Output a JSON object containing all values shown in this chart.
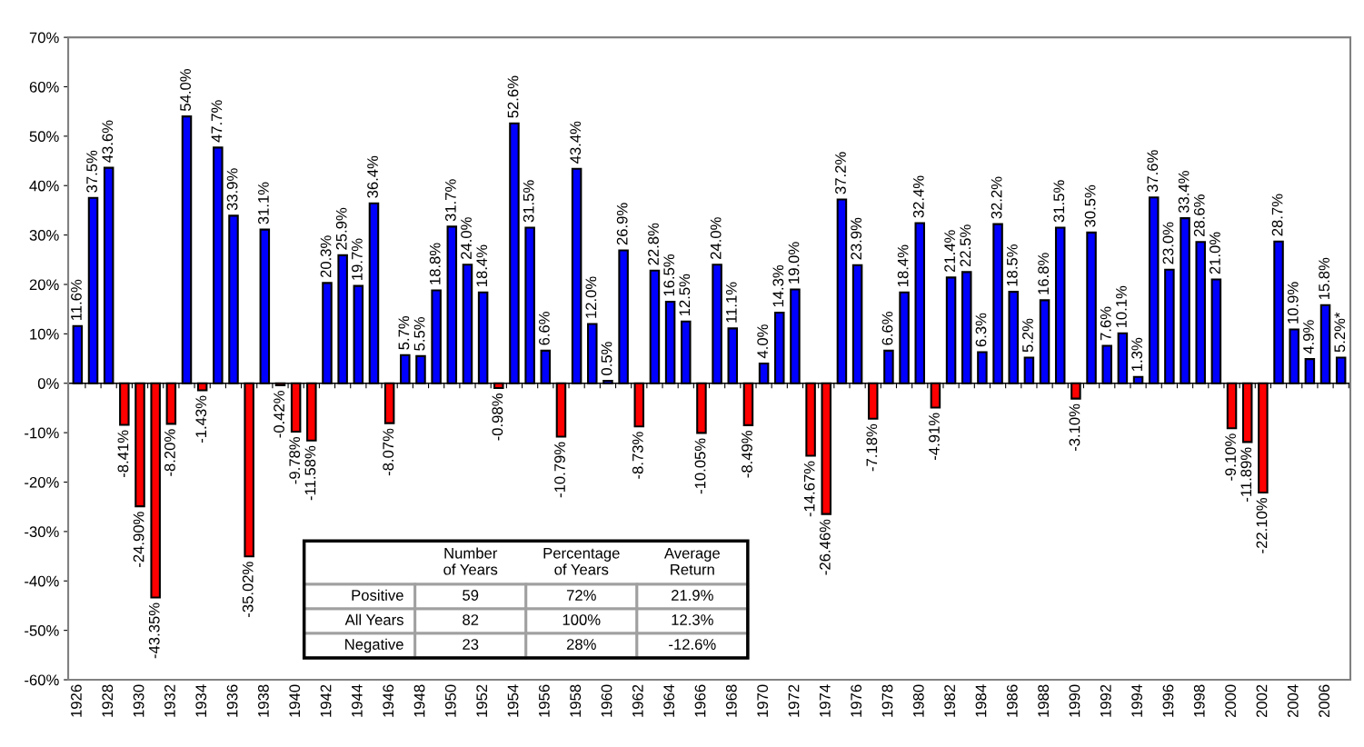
{
  "chart_data": {
    "type": "bar",
    "categories": [
      "1926",
      null,
      "1928",
      null,
      "1930",
      null,
      "1932",
      null,
      "1934",
      null,
      "1936",
      null,
      "1938",
      null,
      "1940",
      null,
      "1942",
      null,
      "1944",
      null,
      "1946",
      null,
      "1948",
      null,
      "1950",
      null,
      "1952",
      null,
      "1954",
      null,
      "1956",
      null,
      "1958",
      null,
      "1960",
      null,
      "1962",
      null,
      "1964",
      null,
      "1966",
      null,
      "1968",
      null,
      "1970",
      null,
      "1972",
      null,
      "1974",
      null,
      "1976",
      null,
      "1978",
      null,
      "1980",
      null,
      "1982",
      null,
      "1984",
      null,
      "1986",
      null,
      "1988",
      null,
      "1990",
      null,
      "1992",
      null,
      "1994",
      null,
      "1996",
      null,
      "1998",
      null,
      "2000",
      null,
      "2002",
      null,
      "2004",
      null,
      "2006",
      null
    ],
    "values": [
      11.6,
      37.5,
      43.6,
      -8.41,
      -24.9,
      -43.35,
      -8.2,
      54.0,
      -1.43,
      47.7,
      33.9,
      -35.02,
      31.1,
      -0.42,
      -9.78,
      -11.58,
      20.3,
      25.9,
      19.7,
      36.4,
      -8.07,
      5.7,
      5.5,
      18.8,
      31.7,
      24.0,
      18.4,
      -0.98,
      52.6,
      31.5,
      6.6,
      -10.79,
      43.4,
      12.0,
      0.5,
      26.9,
      -8.73,
      22.8,
      16.5,
      12.5,
      -10.05,
      24.0,
      11.1,
      -8.49,
      4.0,
      14.3,
      19.0,
      -14.67,
      -26.46,
      37.2,
      23.9,
      -7.18,
      6.6,
      18.4,
      32.4,
      -4.91,
      21.4,
      22.5,
      6.3,
      32.2,
      18.5,
      5.2,
      16.8,
      31.5,
      -3.1,
      30.5,
      7.6,
      10.1,
      1.3,
      37.6,
      23.0,
      33.4,
      28.6,
      21.0,
      -9.1,
      -11.89,
      -22.1,
      28.7,
      10.9,
      4.9,
      15.8,
      5.2
    ],
    "value_labels": [
      "11.6%",
      "37.5%",
      "43.6%",
      "-8.41%",
      "-24.90%",
      "-43.35%",
      "-8.20%",
      "54.0%",
      "-1.43%",
      "47.7%",
      "33.9%",
      "-35.02%",
      "31.1%",
      "-0.42%",
      "-9.78%",
      "-11.58%",
      "20.3%",
      "25.9%",
      "19.7%",
      "36.4%",
      "-8.07%",
      "5.7%",
      "5.5%",
      "18.8%",
      "31.7%",
      "24.0%",
      "18.4%",
      "-0.98%",
      "52.6%",
      "31.5%",
      "6.6%",
      "-10.79%",
      "43.4%",
      "12.0%",
      "0.5%",
      "26.9%",
      "-8.73%",
      "22.8%",
      "16.5%",
      "12.5%",
      "-10.05%",
      "24.0%",
      "11.1%",
      "-8.49%",
      "4.0%",
      "14.3%",
      "19.0%",
      "-14.67%",
      "-26.46%",
      "37.2%",
      "23.9%",
      "-7.18%",
      "6.6%",
      "18.4%",
      "32.4%",
      "-4.91%",
      "21.4%",
      "22.5%",
      "6.3%",
      "32.2%",
      "18.5%",
      "5.2%",
      "16.8%",
      "31.5%",
      "-3.10%",
      "30.5%",
      "7.6%",
      "10.1%",
      "1.3%",
      "37.6%",
      "23.0%",
      "33.4%",
      "28.6%",
      "21.0%",
      "-9.10%",
      "-11.89%",
      "-22.10%",
      "28.7%",
      "10.9%",
      "4.9%",
      "15.8%",
      "5.2%*"
    ],
    "colors": [
      "#0000ff",
      "#0000ff",
      "#0000ff",
      "#ff0000",
      "#ff0000",
      "#ff0000",
      "#ff0000",
      "#0000ff",
      "#ff0000",
      "#0000ff",
      "#0000ff",
      "#ff0000",
      "#0000ff",
      "#ff0000",
      "#ff0000",
      "#ff0000",
      "#0000ff",
      "#0000ff",
      "#0000ff",
      "#0000ff",
      "#ff0000",
      "#0000ff",
      "#0000ff",
      "#0000ff",
      "#0000ff",
      "#0000ff",
      "#0000ff",
      "#ff0000",
      "#0000ff",
      "#0000ff",
      "#0000ff",
      "#ff0000",
      "#0000ff",
      "#0000ff",
      "#0000ff",
      "#0000ff",
      "#ff0000",
      "#0000ff",
      "#0000ff",
      "#0000ff",
      "#ff0000",
      "#0000ff",
      "#0000ff",
      "#ff0000",
      "#0000ff",
      "#0000ff",
      "#0000ff",
      "#ff0000",
      "#ff0000",
      "#0000ff",
      "#0000ff",
      "#ff0000",
      "#0000ff",
      "#0000ff",
      "#0000ff",
      "#ff0000",
      "#0000ff",
      "#0000ff",
      "#0000ff",
      "#0000ff",
      "#0000ff",
      "#0000ff",
      "#0000ff",
      "#0000ff",
      "#ff0000",
      "#0000ff",
      "#0000ff",
      "#0000ff",
      "#0000ff",
      "#0000ff",
      "#0000ff",
      "#0000ff",
      "#0000ff",
      "#0000ff",
      "#ff0000",
      "#ff0000",
      "#ff0000",
      "#0000ff",
      "#0000ff",
      "#0000ff",
      "#0000ff",
      "#0000ff"
    ],
    "ylim": [
      -60,
      70
    ],
    "yticks": [
      {
        "value": -60,
        "label": "-60%"
      },
      {
        "value": -50,
        "label": "-50%"
      },
      {
        "value": -40,
        "label": "-40%"
      },
      {
        "value": -30,
        "label": "-30%"
      },
      {
        "value": -20,
        "label": "-20%"
      },
      {
        "value": -10,
        "label": "-10%"
      },
      {
        "value": 0,
        "label": "0%"
      },
      {
        "value": 10,
        "label": "10%"
      },
      {
        "value": 20,
        "label": "20%"
      },
      {
        "value": 30,
        "label": "30%"
      },
      {
        "value": 40,
        "label": "40%"
      },
      {
        "value": 50,
        "label": "50%"
      },
      {
        "value": 60,
        "label": "60%"
      },
      {
        "value": 70,
        "label": "70%"
      }
    ],
    "annotations": [
      "Number\nof Years",
      "Percentage\nof Years",
      "Average\nReturn",
      "Positive",
      "59",
      "72%",
      "21.9%",
      "All Years",
      "82",
      "100%",
      "12.3%",
      "Negative",
      "23",
      "28%",
      "-12.6%"
    ]
  }
}
